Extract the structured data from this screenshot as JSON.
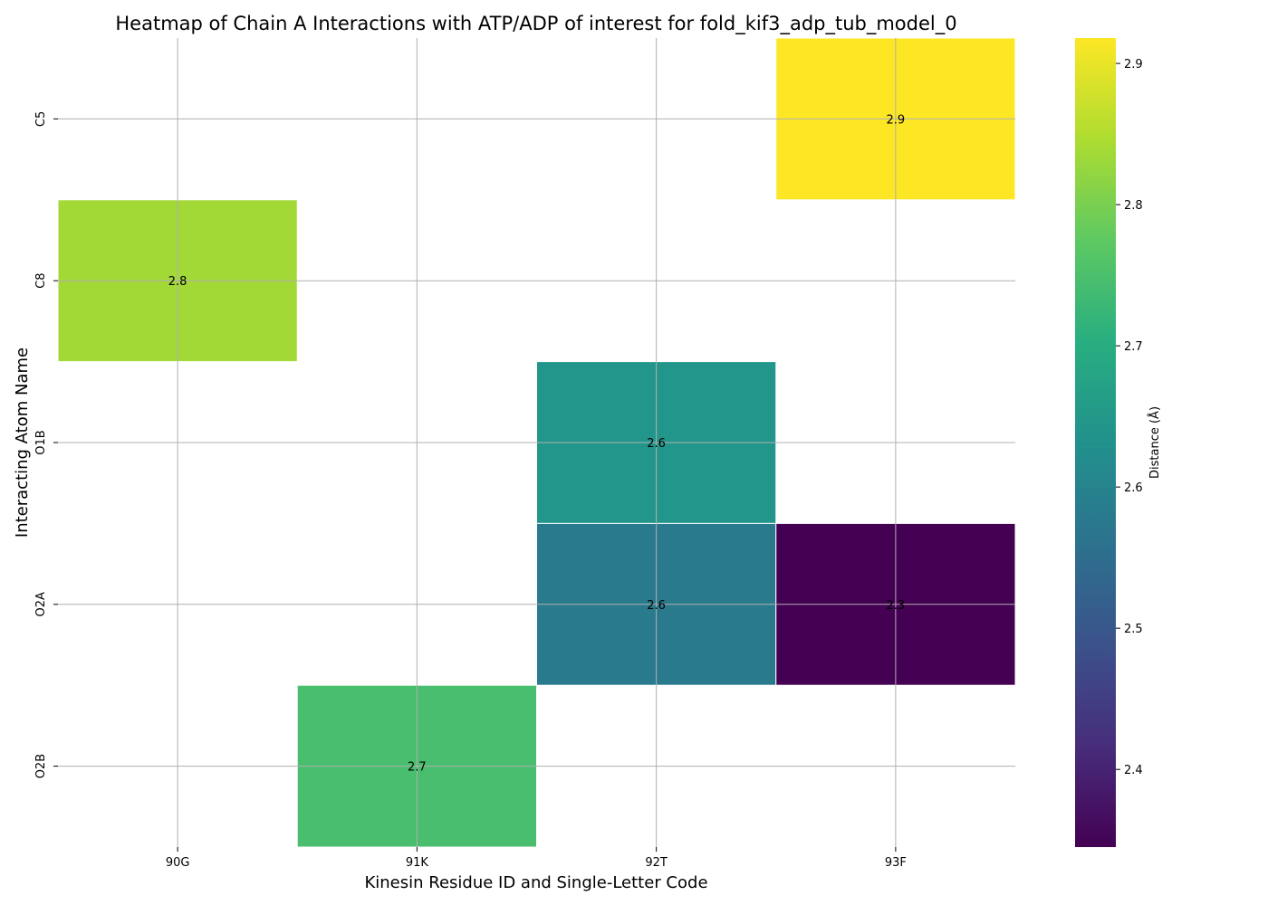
{
  "chart_data": {
    "type": "heatmap",
    "title": "Heatmap of Chain A Interactions with ATP/ADP of interest for fold_kif3_adp_tub_model_0",
    "xlabel": "Kinesin Residue ID and Single-Letter Code",
    "ylabel": "Interacting Atom Name",
    "x_categories": [
      "90G",
      "91K",
      "92T",
      "93F"
    ],
    "y_categories": [
      "C5",
      "C8",
      "O1B",
      "O2A",
      "O2B"
    ],
    "cells": [
      {
        "x": "93F",
        "y": "C5",
        "value": 2.918,
        "label": "2.9"
      },
      {
        "x": "90G",
        "y": "C8",
        "value": 2.836,
        "label": "2.8"
      },
      {
        "x": "92T",
        "y": "O1B",
        "value": 2.645,
        "label": "2.6"
      },
      {
        "x": "92T",
        "y": "O2A",
        "value": 2.578,
        "label": "2.6"
      },
      {
        "x": "93F",
        "y": "O2A",
        "value": 2.345,
        "label": "2.3"
      },
      {
        "x": "91K",
        "y": "O2B",
        "value": 2.746,
        "label": "2.7"
      }
    ],
    "colorbar": {
      "label": "Distance (Å)",
      "colormap": "viridis",
      "range": [
        2.345,
        2.918
      ],
      "ticks": [
        2.4,
        2.5,
        2.6,
        2.7,
        2.8,
        2.9
      ],
      "tick_labels": [
        "2.4",
        "2.5",
        "2.6",
        "2.7",
        "2.8",
        "2.9"
      ]
    },
    "grid": true
  }
}
